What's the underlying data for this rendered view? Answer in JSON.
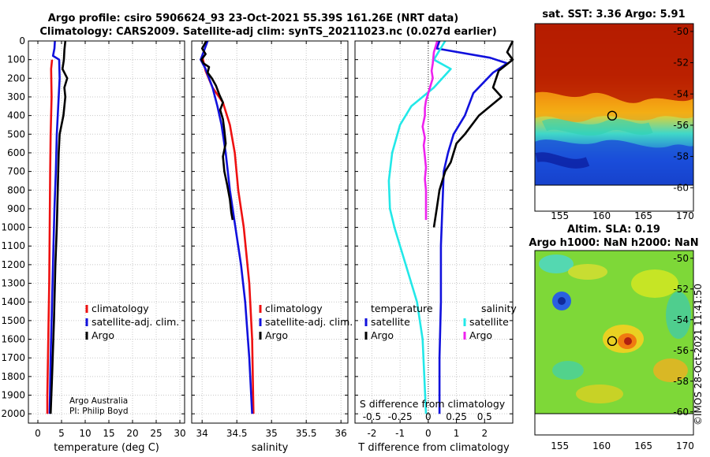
{
  "header": {
    "title_line1": "Argo profile: csiro 5906624_93 23-Oct-2021 55.39S 161.26E (NRT data)",
    "title_line2": "Climatology: CARS2009. Satellite-adj clim: synTS_20211023.nc (0.027d earlier)"
  },
  "credits": {
    "line1": "Argo Australia",
    "line2": "PI: Philip Boyd"
  },
  "watermark": "©IMOS 28-Oct-2021 11:41:50",
  "colors": {
    "climatology": "#ee1111",
    "satellite": "#1111dd",
    "argo": "#000000",
    "sat_salinity": "#22e8e8",
    "argo_salinity": "#ee22ee"
  },
  "chart_data": [
    {
      "type": "line",
      "name": "temperature-profile",
      "xlabel": "temperature (deg C)",
      "ylabel": "",
      "xlim": [
        -2,
        31
      ],
      "ylim": [
        2050,
        0
      ],
      "xticks": [
        0,
        5,
        10,
        15,
        20,
        25,
        30
      ],
      "yticks": [
        0,
        100,
        200,
        300,
        400,
        500,
        600,
        700,
        800,
        900,
        1000,
        1100,
        1200,
        1300,
        1400,
        1500,
        1600,
        1700,
        1800,
        1900,
        2000
      ],
      "grid": true,
      "legend": [
        "climatology",
        "satellite-adj. clim.",
        "Argo"
      ],
      "series": [
        {
          "name": "climatology",
          "color": "#ee1111",
          "points": [
            [
              3.0,
              100
            ],
            [
              2.8,
              150
            ],
            [
              2.9,
              300
            ],
            [
              2.7,
              500
            ],
            [
              2.6,
              700
            ],
            [
              2.5,
              1000
            ],
            [
              2.4,
              1300
            ],
            [
              2.2,
              1600
            ],
            [
              2.0,
              1900
            ],
            [
              2.0,
              2000
            ]
          ]
        },
        {
          "name": "satellite-adj. clim.",
          "color": "#1111dd",
          "points": [
            [
              3.6,
              0
            ],
            [
              3.5,
              40
            ],
            [
              3.2,
              80
            ],
            [
              4.5,
              100
            ],
            [
              4.6,
              200
            ],
            [
              4.4,
              300
            ],
            [
              4.0,
              500
            ],
            [
              3.8,
              700
            ],
            [
              3.5,
              900
            ],
            [
              3.3,
              1100
            ],
            [
              3.0,
              1400
            ],
            [
              2.7,
              1700
            ],
            [
              2.5,
              2000
            ]
          ]
        },
        {
          "name": "Argo",
          "color": "#000000",
          "points": [
            [
              5.8,
              0
            ],
            [
              5.6,
              50
            ],
            [
              5.5,
              100
            ],
            [
              5.2,
              150
            ],
            [
              6.2,
              200
            ],
            [
              5.6,
              250
            ],
            [
              5.8,
              300
            ],
            [
              5.4,
              400
            ],
            [
              4.6,
              500
            ],
            [
              4.4,
              600
            ],
            [
              4.2,
              800
            ],
            [
              4.0,
              1000
            ],
            [
              3.7,
              1200
            ],
            [
              3.4,
              1500
            ],
            [
              3.0,
              1800
            ],
            [
              2.7,
              2000
            ]
          ]
        }
      ]
    },
    {
      "type": "line",
      "name": "salinity-profile",
      "xlabel": "salinity",
      "xlim": [
        33.85,
        36.1
      ],
      "ylim": [
        2050,
        0
      ],
      "xticks": [
        34,
        34.5,
        35,
        35.5,
        36
      ],
      "xticklabels": [
        "34",
        "34.5",
        "35",
        "35.5",
        "36"
      ],
      "grid": true,
      "legend": [
        "climatology",
        "satellite-adj. clim.",
        "Argo"
      ],
      "series": [
        {
          "name": "climatology",
          "color": "#ee1111",
          "points": [
            [
              34.0,
              80
            ],
            [
              34.05,
              160
            ],
            [
              34.15,
              250
            ],
            [
              34.3,
              330
            ],
            [
              34.4,
              450
            ],
            [
              34.47,
              600
            ],
            [
              34.52,
              800
            ],
            [
              34.6,
              1000
            ],
            [
              34.68,
              1300
            ],
            [
              34.72,
              1600
            ],
            [
              34.74,
              2000
            ]
          ]
        },
        {
          "name": "satellite-adj. clim.",
          "color": "#1111dd",
          "points": [
            [
              34.08,
              0
            ],
            [
              33.98,
              100
            ],
            [
              34.05,
              150
            ],
            [
              34.15,
              250
            ],
            [
              34.22,
              350
            ],
            [
              34.28,
              450
            ],
            [
              34.34,
              600
            ],
            [
              34.4,
              800
            ],
            [
              34.48,
              1000
            ],
            [
              34.56,
              1200
            ],
            [
              34.62,
              1400
            ],
            [
              34.68,
              1700
            ],
            [
              34.72,
              2000
            ]
          ]
        },
        {
          "name": "Argo",
          "color": "#000000",
          "points": [
            [
              34.06,
              0
            ],
            [
              34.0,
              40
            ],
            [
              34.05,
              70
            ],
            [
              33.99,
              100
            ],
            [
              34.02,
              120
            ],
            [
              34.1,
              140
            ],
            [
              34.08,
              170
            ],
            [
              34.14,
              200
            ],
            [
              34.2,
              240
            ],
            [
              34.25,
              290
            ],
            [
              34.3,
              330
            ],
            [
              34.26,
              370
            ],
            [
              34.3,
              420
            ],
            [
              34.32,
              480
            ],
            [
              34.34,
              550
            ],
            [
              34.3,
              620
            ],
            [
              34.32,
              700
            ],
            [
              34.36,
              770
            ],
            [
              34.4,
              850
            ],
            [
              34.42,
              920
            ],
            [
              34.44,
              960
            ]
          ]
        }
      ]
    },
    {
      "type": "line",
      "name": "difference-profile",
      "xlabel": "T difference from climatology",
      "xlabel_top": "S difference from climatology",
      "xlim": [
        -2.6,
        3
      ],
      "ylim": [
        2050,
        0
      ],
      "xticks": [
        -2,
        -1,
        0,
        1,
        2
      ],
      "s_xtick_labels": [
        "-0.5",
        "-0.25",
        "0",
        "0.25",
        "0.5"
      ],
      "s_xticks_data": [
        -0.5,
        -0.25,
        0,
        0.25,
        0.5
      ],
      "grid": true,
      "legend_left_title": "temperature",
      "legend_right_title": "salinity",
      "legend_left": [
        "satellite",
        "Argo"
      ],
      "legend_right": [
        "satellite",
        "Argo"
      ],
      "series": [
        {
          "name": "T satellite",
          "color": "#1111dd",
          "points": [
            [
              0.4,
              0
            ],
            [
              0.3,
              40
            ],
            [
              2.2,
              90
            ],
            [
              2.8,
              120
            ],
            [
              2.3,
              170
            ],
            [
              1.6,
              280
            ],
            [
              1.3,
              400
            ],
            [
              0.9,
              500
            ],
            [
              0.7,
              600
            ],
            [
              0.55,
              700
            ],
            [
              0.5,
              900
            ],
            [
              0.45,
              1100
            ],
            [
              0.45,
              1400
            ],
            [
              0.4,
              1700
            ],
            [
              0.4,
              2000
            ]
          ]
        },
        {
          "name": "T Argo",
          "color": "#000000",
          "points": [
            [
              3.0,
              0
            ],
            [
              2.8,
              60
            ],
            [
              3.0,
              100
            ],
            [
              2.5,
              160
            ],
            [
              2.3,
              250
            ],
            [
              2.6,
              300
            ],
            [
              1.8,
              400
            ],
            [
              1.5,
              460
            ],
            [
              1.3,
              500
            ],
            [
              1.0,
              550
            ],
            [
              0.8,
              650
            ],
            [
              0.6,
              700
            ],
            [
              0.4,
              800
            ],
            [
              0.3,
              900
            ],
            [
              0.2,
              1000
            ]
          ]
        },
        {
          "name": "S satellite",
          "color": "#22e8e8",
          "points": [
            [
              0.15,
              0
            ],
            [
              0.05,
              100
            ],
            [
              0.2,
              150
            ],
            [
              0.05,
              250
            ],
            [
              -0.15,
              350
            ],
            [
              -0.25,
              450
            ],
            [
              -0.32,
              600
            ],
            [
              -0.35,
              750
            ],
            [
              -0.34,
              900
            ],
            [
              -0.3,
              1000
            ],
            [
              -0.2,
              1200
            ],
            [
              -0.1,
              1400
            ],
            [
              -0.05,
              1600
            ],
            [
              -0.02,
              2000
            ]
          ]
        },
        {
          "name": "S Argo",
          "color": "#ee22ee",
          "points": [
            [
              0.08,
              0
            ],
            [
              0.05,
              60
            ],
            [
              0.04,
              120
            ],
            [
              0.03,
              160
            ],
            [
              0.04,
              200
            ],
            [
              0.02,
              240
            ],
            [
              0.0,
              280
            ],
            [
              -0.02,
              320
            ],
            [
              -0.03,
              360
            ],
            [
              -0.03,
              400
            ],
            [
              -0.05,
              460
            ],
            [
              -0.03,
              520
            ],
            [
              -0.04,
              560
            ],
            [
              -0.03,
              620
            ],
            [
              -0.02,
              680
            ],
            [
              -0.03,
              740
            ],
            [
              -0.02,
              800
            ],
            [
              -0.02,
              880
            ],
            [
              -0.02,
              960
            ]
          ]
        }
      ]
    },
    {
      "type": "heatmap",
      "name": "sst-map",
      "title": "sat. SST: 3.36 Argo: 5.91",
      "xlim": [
        152,
        171
      ],
      "ylim": [
        -61.5,
        -49.5
      ],
      "xticks": [
        155,
        160,
        165,
        170
      ],
      "yticks": [
        -50,
        -52,
        -54,
        -56,
        -58,
        -60
      ],
      "marker": {
        "lon": 161.26,
        "lat": -55.39
      }
    },
    {
      "type": "heatmap",
      "name": "sla-map",
      "title_line1": "Altim. SLA: 0.19",
      "title_line2": "Argo h1000: NaN h2000: NaN",
      "xlim": [
        152,
        171
      ],
      "ylim": [
        -61.5,
        -49.5
      ],
      "xticks": [
        155,
        160,
        165,
        170
      ],
      "yticks": [
        -50,
        -52,
        -54,
        -56,
        -58,
        -60
      ],
      "marker": {
        "lon": 161.26,
        "lat": -55.39
      }
    }
  ]
}
